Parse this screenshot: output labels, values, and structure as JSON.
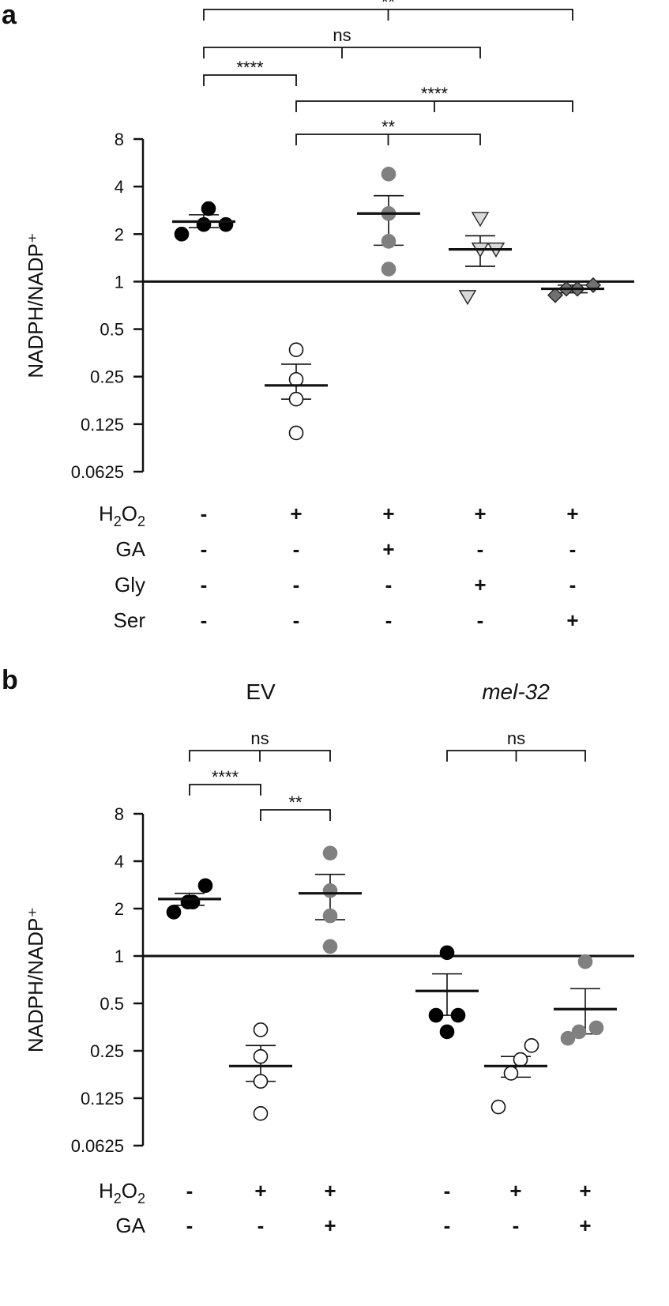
{
  "chart_data": [
    {
      "type": "scatter",
      "panel": "a",
      "ylabel": "NADPH/NADP⁺",
      "y_scale": "log2",
      "ylim": [
        0.0625,
        8
      ],
      "yticks": [
        "8",
        "4",
        "2",
        "1",
        "0.5",
        "0.25",
        "0.125",
        "0.0625"
      ],
      "reference_line": 1,
      "conditions": [
        {
          "name": "H₂O₂",
          "signs": [
            "-",
            "+",
            "+",
            "+",
            "+"
          ]
        },
        {
          "name": "GA",
          "signs": [
            "-",
            "-",
            "+",
            "-",
            "-"
          ]
        },
        {
          "name": "Gly",
          "signs": [
            "-",
            "-",
            "-",
            "+",
            "-"
          ]
        },
        {
          "name": "Ser",
          "signs": [
            "-",
            "-",
            "-",
            "-",
            "+"
          ]
        }
      ],
      "groups": [
        {
          "marker": "circle",
          "fill": "#000000",
          "points": [
            2.0,
            2.3,
            2.3,
            2.9
          ],
          "mean": 2.4,
          "sem": [
            2.2,
            2.65
          ]
        },
        {
          "marker": "circle",
          "fill": "#ffffff",
          "points": [
            0.11,
            0.18,
            0.24,
            0.37
          ],
          "mean": 0.22,
          "sem": [
            0.18,
            0.3
          ]
        },
        {
          "marker": "circle",
          "fill": "#808080",
          "points": [
            1.2,
            1.8,
            2.7,
            4.8
          ],
          "mean": 2.7,
          "sem": [
            1.7,
            3.5
          ]
        },
        {
          "marker": "triangle-down",
          "fill": "#d9d9d9",
          "points": [
            0.8,
            1.6,
            1.6,
            2.5
          ],
          "mean": 1.6,
          "sem": [
            1.25,
            1.95
          ]
        },
        {
          "marker": "diamond",
          "fill": "#707070",
          "points": [
            0.82,
            0.9,
            0.9,
            0.95
          ],
          "mean": 0.9,
          "sem": [
            0.85,
            0.95
          ]
        }
      ],
      "comparisons": [
        {
          "groups": [
            1,
            5
          ],
          "label": "**"
        },
        {
          "groups": [
            1,
            4
          ],
          "label": "ns"
        },
        {
          "groups": [
            1,
            2
          ],
          "label": "****"
        },
        {
          "groups": [
            2,
            5
          ],
          "label": "****"
        },
        {
          "groups": [
            2,
            4
          ],
          "label": "**"
        }
      ]
    },
    {
      "type": "scatter",
      "panel": "b",
      "ylabel": "NADPH/NADP⁺",
      "y_scale": "log2",
      "ylim": [
        0.0625,
        8
      ],
      "yticks": [
        "8",
        "4",
        "2",
        "1",
        "0.5",
        "0.25",
        "0.125",
        "0.0625"
      ],
      "reference_line": 1,
      "group_titles": [
        {
          "label": "EV",
          "italic": false
        },
        {
          "label": "mel-32",
          "italic": true
        }
      ],
      "conditions": [
        {
          "name": "H₂O₂",
          "signs": [
            "-",
            "+",
            "+",
            "-",
            "+",
            "+"
          ]
        },
        {
          "name": "GA",
          "signs": [
            "-",
            "-",
            "+",
            "-",
            "-",
            "+"
          ]
        }
      ],
      "groups": [
        {
          "marker": "circle",
          "fill": "#000000",
          "points": [
            1.9,
            2.2,
            2.2,
            2.8
          ],
          "mean": 2.3,
          "sem": [
            2.1,
            2.5
          ]
        },
        {
          "marker": "circle",
          "fill": "#ffffff",
          "points": [
            0.1,
            0.16,
            0.23,
            0.34
          ],
          "mean": 0.2,
          "sem": [
            0.16,
            0.27
          ]
        },
        {
          "marker": "circle",
          "fill": "#808080",
          "points": [
            1.15,
            1.8,
            2.6,
            4.5
          ],
          "mean": 2.5,
          "sem": [
            1.7,
            3.3
          ]
        },
        {
          "marker": "circle",
          "fill": "#000000",
          "points": [
            0.33,
            0.42,
            0.42,
            1.05
          ],
          "mean": 0.6,
          "sem": [
            0.42,
            0.77
          ]
        },
        {
          "marker": "circle",
          "fill": "#ffffff",
          "points": [
            0.11,
            0.18,
            0.22,
            0.27
          ],
          "mean": 0.2,
          "sem": [
            0.17,
            0.23
          ]
        },
        {
          "marker": "circle",
          "fill": "#808080",
          "points": [
            0.3,
            0.33,
            0.35,
            0.92
          ],
          "mean": 0.46,
          "sem": [
            0.32,
            0.62
          ]
        }
      ],
      "comparisons": [
        {
          "groups": [
            1,
            3
          ],
          "label": "ns"
        },
        {
          "groups": [
            1,
            2
          ],
          "label": "****"
        },
        {
          "groups": [
            2,
            3
          ],
          "label": "**"
        },
        {
          "groups": [
            4,
            6
          ],
          "label": "ns"
        }
      ]
    }
  ]
}
